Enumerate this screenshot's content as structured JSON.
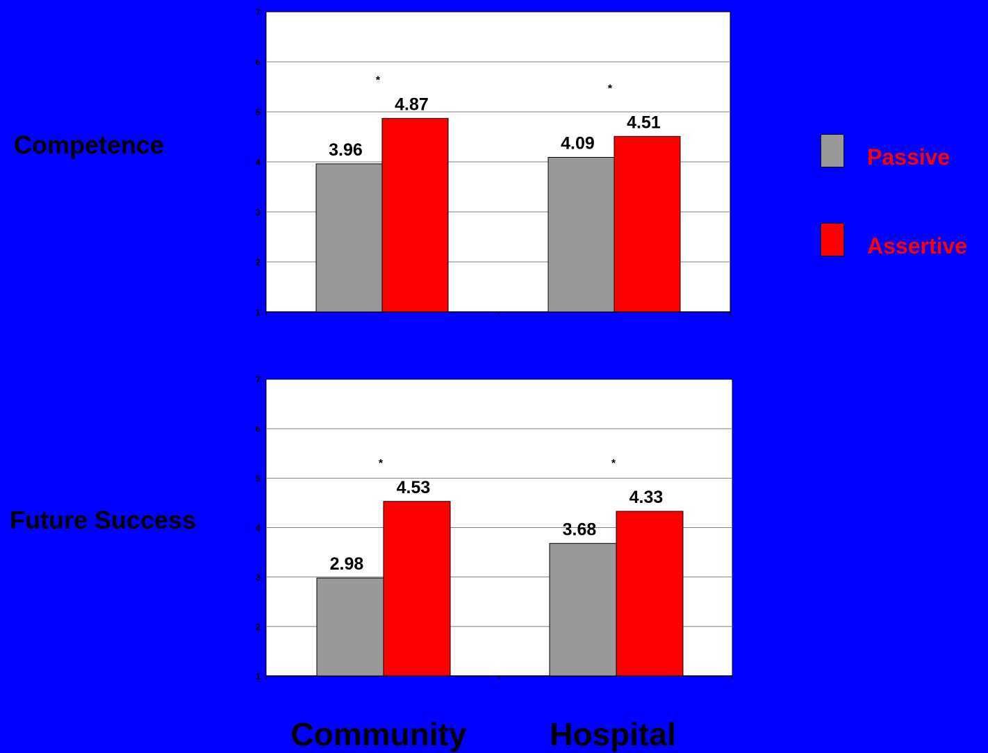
{
  "colors": {
    "background": "#0000FF",
    "plot_background": "#FFFFFF",
    "passive": "#999999",
    "assertive": "#FF0000",
    "legend_text": "#FF0000"
  },
  "legend": {
    "position": "right",
    "items": [
      {
        "label": "Passive",
        "color": "#999999"
      },
      {
        "label": "Assertive",
        "color": "#FF0000"
      }
    ]
  },
  "category_labels": [
    "Community",
    "Hospital"
  ],
  "chart_data": [
    {
      "type": "bar",
      "row_label": "Competence",
      "categories": [
        "Community",
        "Hospital"
      ],
      "series": [
        {
          "name": "Passive",
          "values": [
            3.96,
            4.09
          ],
          "labels": [
            "3.96",
            "4.09"
          ]
        },
        {
          "name": "Assertive",
          "values": [
            4.87,
            4.51
          ],
          "labels": [
            "4.87",
            "4.51"
          ]
        }
      ],
      "significance": [
        "*",
        "*"
      ],
      "ylim": [
        1,
        7
      ],
      "yticks": [
        "1",
        "2",
        "3",
        "4",
        "5",
        "6",
        "7"
      ],
      "grid": true
    },
    {
      "type": "bar",
      "row_label": "Future Success",
      "categories": [
        "Community",
        "Hospital"
      ],
      "series": [
        {
          "name": "Passive",
          "values": [
            2.98,
            3.68
          ],
          "labels": [
            "2.98",
            "3.68"
          ]
        },
        {
          "name": "Assertive",
          "values": [
            4.53,
            4.33
          ],
          "labels": [
            "4.53",
            "4.33"
          ]
        }
      ],
      "significance": [
        "*",
        "*"
      ],
      "ylim": [
        1,
        7
      ],
      "yticks": [
        "1",
        "2",
        "3",
        "4",
        "5",
        "6",
        "7"
      ],
      "grid": true
    }
  ]
}
